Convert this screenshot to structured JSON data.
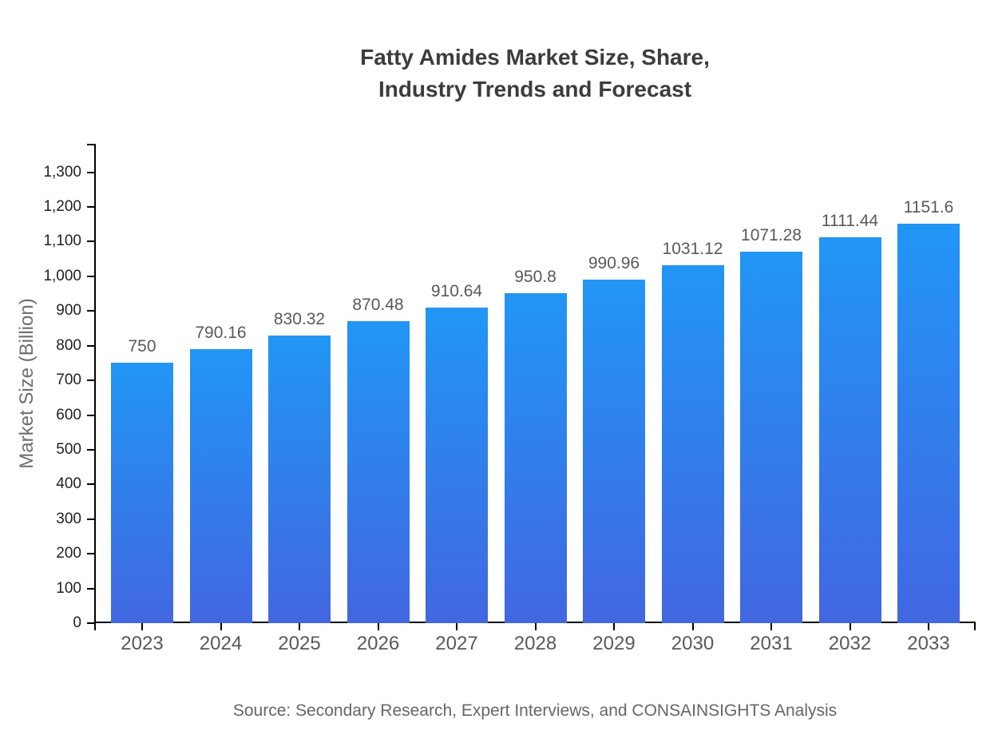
{
  "page": {
    "background_color": "#ffffff"
  },
  "header": {
    "title_line1": "Fatty Amides Market Size, Share,",
    "title_line2": "Industry Trends and Forecast"
  },
  "footer": {
    "source_note": "Source: Secondary Research, Expert Interviews, and CONSAINSIGHTS Analysis"
  },
  "chart_data": {
    "type": "bar",
    "title": "Fatty Amides Market Size, Share, Industry Trends and Forecast",
    "xlabel": "",
    "ylabel": "Market Size (Billion)",
    "categories": [
      "2023",
      "2024",
      "2025",
      "2026",
      "2027",
      "2028",
      "2029",
      "2030",
      "2031",
      "2032",
      "2033"
    ],
    "values": [
      750,
      790.16,
      830.32,
      870.48,
      910.64,
      950.8,
      990.96,
      1031.12,
      1071.28,
      1111.44,
      1151.6
    ],
    "bar_labels": [
      "750",
      "790.16",
      "830.32",
      "870.48",
      "910.64",
      "950.8",
      "990.96",
      "1031.12",
      "1071.28",
      "1111.44",
      "1151.6"
    ],
    "ytick_values": [
      0,
      100,
      200,
      300,
      400,
      500,
      600,
      700,
      800,
      900,
      1000,
      1100,
      1200,
      1300
    ],
    "ytick_labels": [
      "0",
      "100",
      "200",
      "300",
      "400",
      "500",
      "600",
      "700",
      "800",
      "900",
      "1,000",
      "1,100",
      "1,200",
      "1,300"
    ],
    "ylim": [
      0,
      1382
    ],
    "grid": false,
    "legend_position": "none",
    "bar_gradient_top_color": "#2196f5",
    "bar_gradient_bottom_color": "#4267e0",
    "axis_color": "#000000"
  }
}
